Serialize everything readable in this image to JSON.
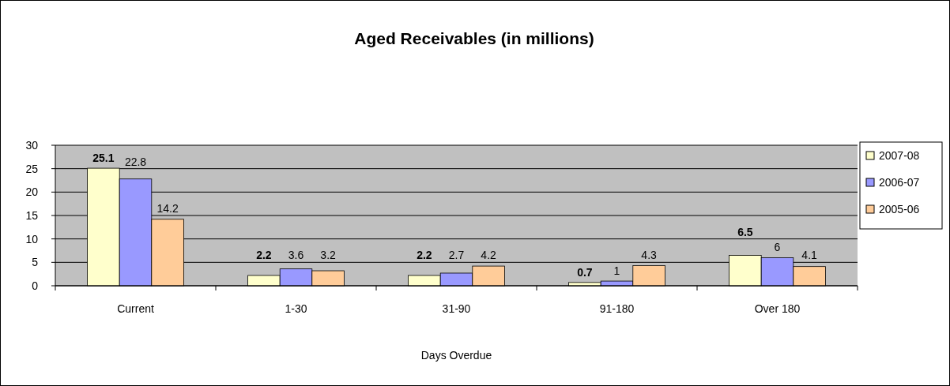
{
  "chart_data": {
    "type": "bar",
    "title": "Aged Receivables (in millions)",
    "xlabel": "Days Overdue",
    "categories": [
      "Current",
      "1-30",
      "31-90",
      "91-180",
      "Over 180"
    ],
    "series": [
      {
        "name": "2007-08",
        "color": "#ffffcc",
        "values": [
          25.1,
          2.2,
          2.2,
          0.7,
          6.5
        ]
      },
      {
        "name": "2006-07",
        "color": "#9999ff",
        "values": [
          22.8,
          3.6,
          2.7,
          1,
          6
        ]
      },
      {
        "name": "2005-06",
        "color": "#ffcc99",
        "values": [
          14.2,
          3.2,
          4.2,
          4.3,
          4.1
        ]
      }
    ],
    "ylim": [
      0,
      30
    ],
    "yticks": [
      0,
      5,
      10,
      15,
      20,
      25,
      30
    ],
    "grid": "y",
    "legend": "right",
    "data_labels": true
  }
}
